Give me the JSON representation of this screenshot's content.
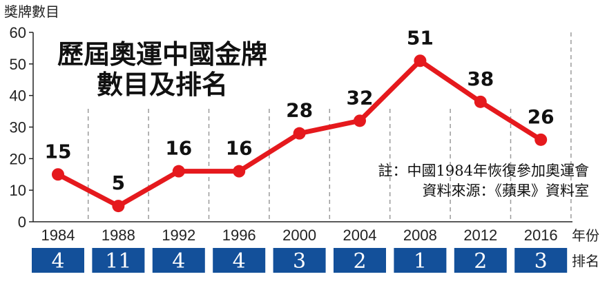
{
  "chart_data": {
    "type": "line",
    "title": "歷屆奧運中國金牌",
    "subtitle": "數目及排名",
    "ylabel": "獎牌數目",
    "xlabel": "年份",
    "rank_label": "排名",
    "ylim": [
      0,
      60
    ],
    "yticks": [
      "0",
      "10",
      "20",
      "30",
      "40",
      "50",
      "60"
    ],
    "categories": [
      "1984",
      "1988",
      "1992",
      "1996",
      "2000",
      "2004",
      "2008",
      "2012",
      "2016"
    ],
    "values": [
      15,
      5,
      16,
      16,
      28,
      32,
      51,
      38,
      26
    ],
    "ranks": [
      "4",
      "11",
      "4",
      "4",
      "3",
      "2",
      "1",
      "2",
      "3"
    ],
    "notes": [
      "註：中國1984年恢復參加奧運會",
      "資料來源：《蘋果》資料室"
    ],
    "grid": "vertical-dashed",
    "colors": {
      "line": "#e5191d",
      "rank_box": "#13509a",
      "grid": "#9a9a9a"
    }
  }
}
